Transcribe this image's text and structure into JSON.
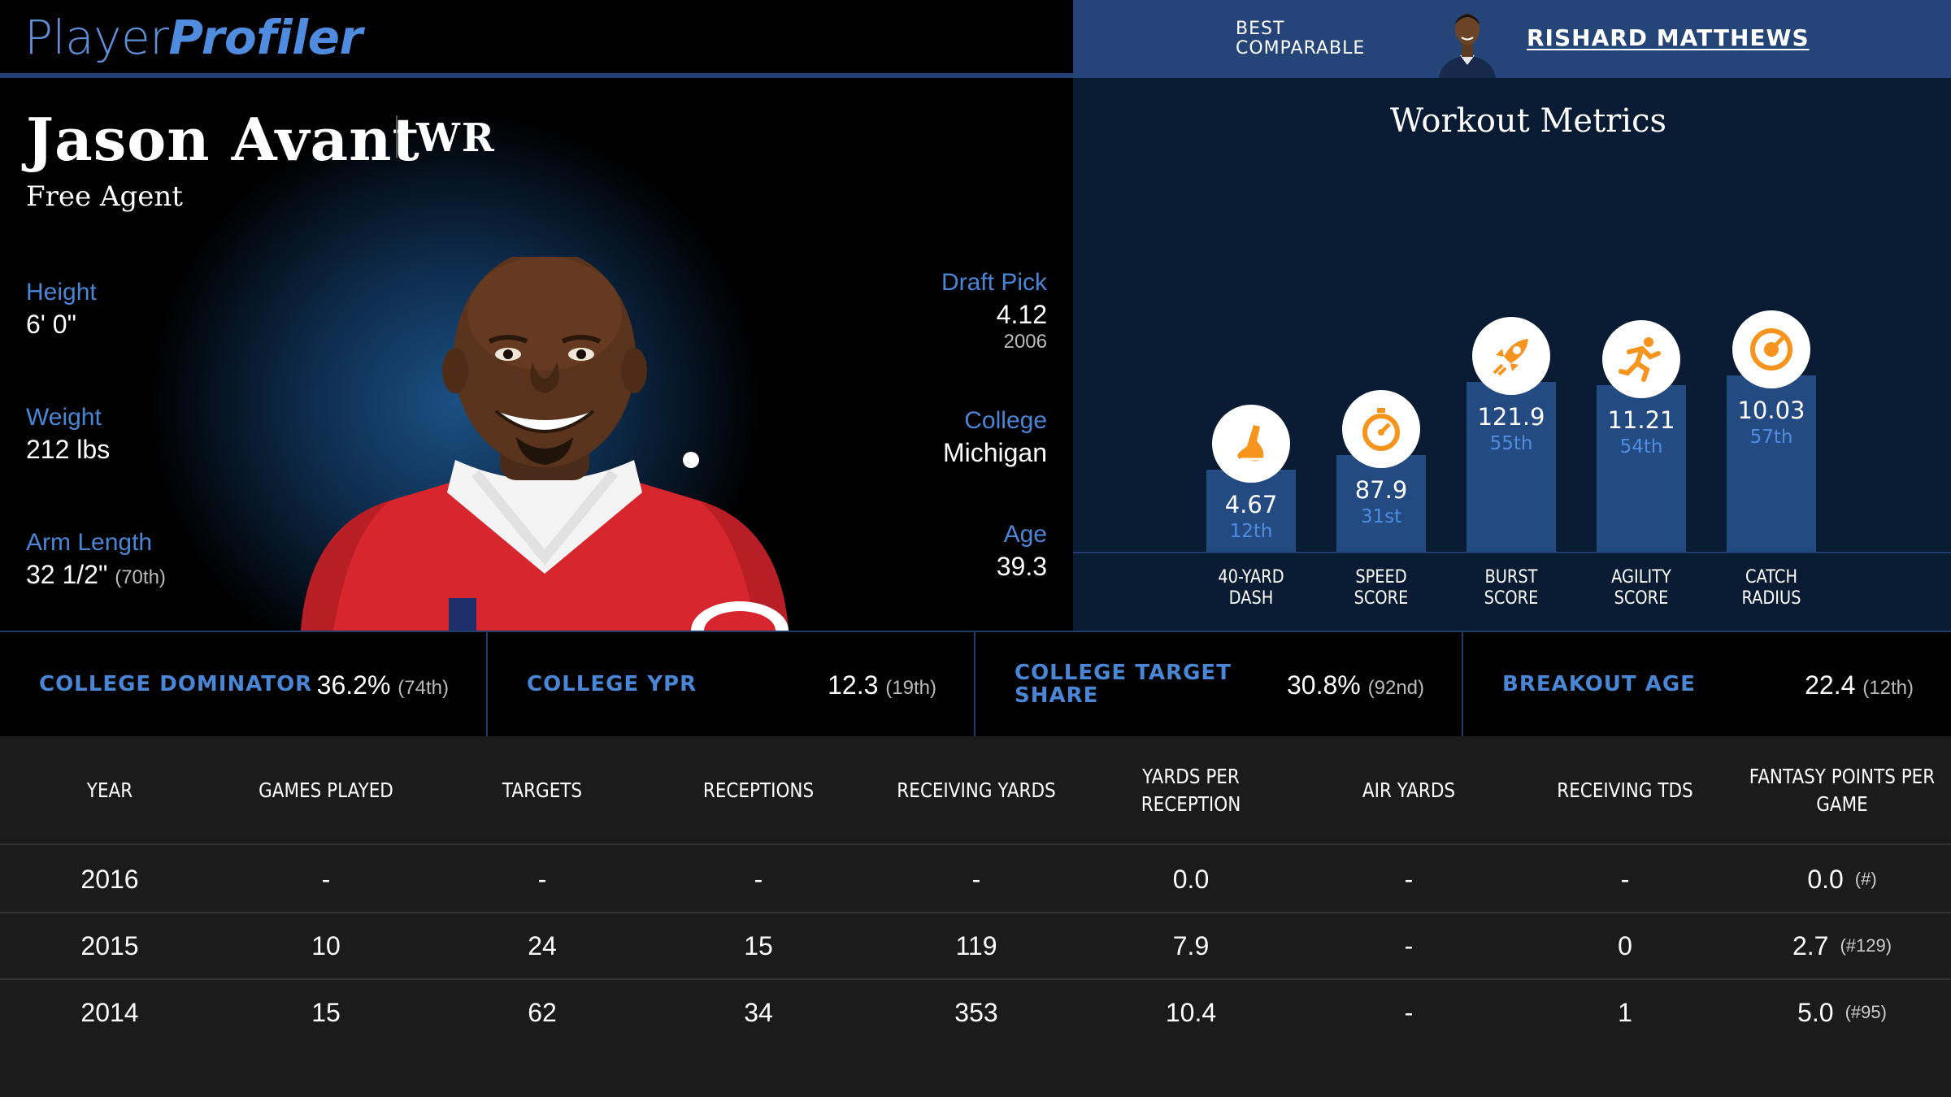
{
  "header": {
    "logo_part1": "Player",
    "logo_part2": "Profiler",
    "comparable_label_line1": "BEST",
    "comparable_label_line2": "COMPARABLE",
    "comparable_name": "RISHARD MATTHEWS"
  },
  "player": {
    "name": "Jason Avant",
    "position": "WR",
    "team": "Free Agent",
    "height_label": "Height",
    "height": "6' 0\"",
    "weight_label": "Weight",
    "weight": "212 lbs",
    "arm_label": "Arm Length",
    "arm": "32 1/2\"",
    "arm_pct": "(70th)",
    "draft_label": "Draft Pick",
    "draft_pick": "4.12",
    "draft_year": "2006",
    "college_label": "College",
    "college": "Michigan",
    "age_label": "Age",
    "age": "39.3"
  },
  "workout": {
    "title": "Workout Metrics",
    "metrics": [
      {
        "label_line1": "40-YARD",
        "label_line2": "DASH",
        "value": "4.67",
        "rank": "12th",
        "percentile": 12,
        "icon": "shoe-icon"
      },
      {
        "label_line1": "SPEED",
        "label_line2": "SCORE",
        "value": "87.9",
        "rank": "31st",
        "percentile": 31,
        "icon": "stopwatch-icon"
      },
      {
        "label_line1": "BURST",
        "label_line2": "SCORE",
        "value": "121.9",
        "rank": "55th",
        "percentile": 55,
        "icon": "rocket-icon"
      },
      {
        "label_line1": "AGILITY",
        "label_line2": "SCORE",
        "value": "11.21",
        "rank": "54th",
        "percentile": 54,
        "icon": "runner-icon"
      },
      {
        "label_line1": "CATCH",
        "label_line2": "RADIUS",
        "value": "10.03",
        "rank": "57th",
        "percentile": 57,
        "icon": "target-icon"
      }
    ],
    "icon_color": "#f7941d"
  },
  "college_stats": [
    {
      "label": "COLLEGE DOMINATOR",
      "value": "36.2%",
      "pct": "(74th)"
    },
    {
      "label": "COLLEGE YPR",
      "value": "12.3",
      "pct": "(19th)"
    },
    {
      "label_line1": "COLLEGE TARGET",
      "label_line2": "SHARE",
      "value": "30.8%",
      "pct": "(92nd)"
    },
    {
      "label": "BREAKOUT AGE",
      "value": "22.4",
      "pct": "(12th)"
    }
  ],
  "table": {
    "headers": [
      "YEAR",
      "GAMES PLAYED",
      "TARGETS",
      "RECEPTIONS",
      "RECEIVING YARDS",
      "YARDS PER RECEPTION",
      "AIR YARDS",
      "RECEIVING TDS",
      "FANTASY POINTS PER",
      "GAME"
    ],
    "rows": [
      {
        "year": "2016",
        "games": "-",
        "targets": "-",
        "receptions": "-",
        "yards": "-",
        "ypr": "0.0",
        "air": "-",
        "tds": "-",
        "fpts": "0.0",
        "fpts_rank": "(#)"
      },
      {
        "year": "2015",
        "games": "10",
        "targets": "24",
        "receptions": "15",
        "yards": "119",
        "ypr": "7.9",
        "air": "-",
        "tds": "0",
        "fpts": "2.7",
        "fpts_rank": "(#129)"
      },
      {
        "year": "2014",
        "games": "15",
        "targets": "62",
        "receptions": "34",
        "yards": "353",
        "ypr": "10.4",
        "air": "-",
        "tds": "1",
        "fpts": "5.0",
        "fpts_rank": "(#95)"
      }
    ]
  },
  "colors": {
    "accent_blue": "#4a86d6",
    "header_blue": "#254578",
    "bar_blue": "#244a82",
    "workout_bg": "#0a1c34",
    "jersey_red": "#d8262e"
  }
}
